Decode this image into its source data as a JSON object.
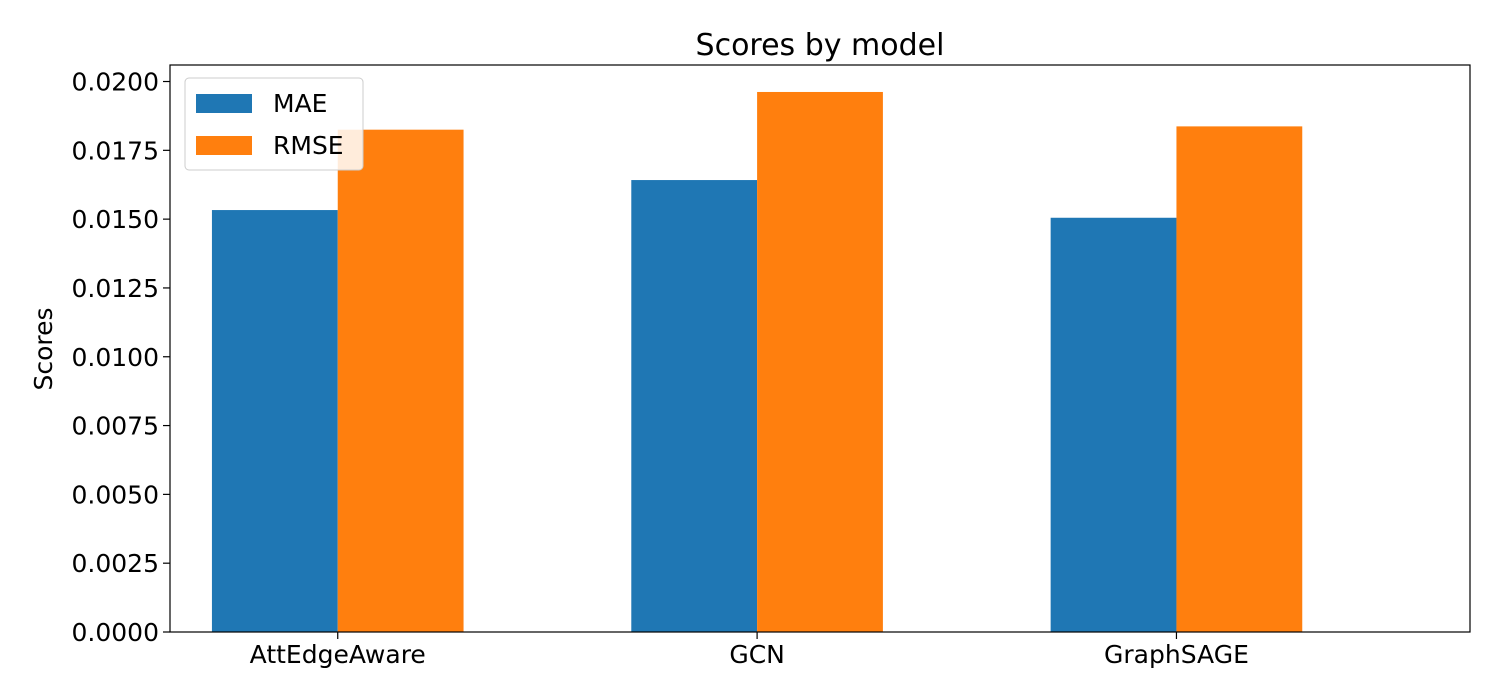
{
  "chart_data": {
    "type": "bar",
    "title": "Scores by model",
    "xlabel": "",
    "ylabel": "Scores",
    "categories": [
      "AttEdgeAware",
      "GCN",
      "GraphSAGE"
    ],
    "series": [
      {
        "name": "MAE",
        "color": "#1f77b4",
        "values": [
          0.01533,
          0.01642,
          0.01505
        ]
      },
      {
        "name": "RMSE",
        "color": "#ff7f0e",
        "values": [
          0.01825,
          0.01962,
          0.01837
        ]
      }
    ],
    "ylim": [
      0,
      0.0206
    ],
    "yticks": [
      "0.0000",
      "0.0025",
      "0.0050",
      "0.0075",
      "0.0100",
      "0.0125",
      "0.0150",
      "0.0175",
      "0.0200"
    ],
    "grid": false,
    "legend_position": "top-left"
  }
}
